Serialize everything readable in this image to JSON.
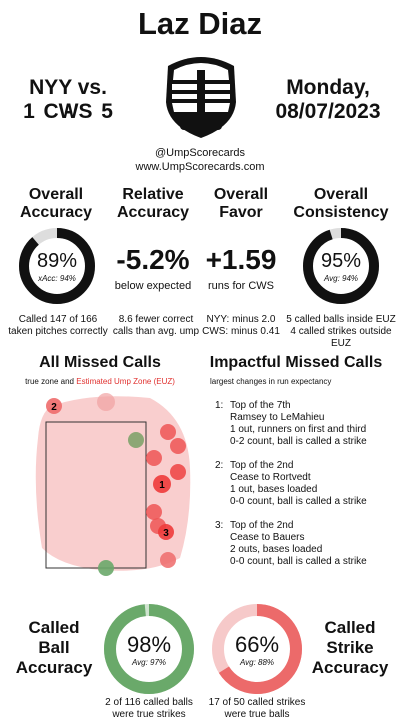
{
  "title": "Laz Diaz",
  "teams": {
    "away": "NYY",
    "vs": "vs.",
    "home": "CWS",
    "away_score": "1",
    "dash": "-",
    "home_score": "5"
  },
  "date": {
    "day": "Monday,",
    "date": "08/07/2023"
  },
  "site": {
    "handle": "@UmpScorecards",
    "url": "www.UmpScorecards.com"
  },
  "stats": {
    "accuracy": {
      "head1": "Overall",
      "head2": "Accuracy",
      "value": "89%",
      "sub": "xAcc: 94%",
      "fraction": 0.886,
      "note1": "Called 147 of 166",
      "note2": "taken pitches correctly"
    },
    "relative": {
      "head1": "Relative",
      "head2": "Accuracy",
      "value": "-5.2%",
      "below": "below expected",
      "note1": "8.6 fewer correct",
      "note2": "calls than avg. ump"
    },
    "favor": {
      "head1": "Overall",
      "head2": "Favor",
      "value": "+1.59",
      "below": "runs for CWS",
      "note1": "NYY: minus 2.0",
      "note2": "CWS: minus 0.41"
    },
    "consistency": {
      "head1": "Overall",
      "head2": "Consistency",
      "value": "95%",
      "sub": "Avg: 94%",
      "fraction": 0.95,
      "note1": "5 called balls inside EUZ",
      "note2": "4 called strikes outside EUZ"
    }
  },
  "missed": {
    "title": "All Missed Calls",
    "legend_true": "true zone and",
    "legend_euz": "Estimated Ump Zone (EUZ)",
    "euz_color": "#e0312f"
  },
  "impact": {
    "title": "Impactful Missed Calls",
    "subtitle": "largest changes in run expectancy",
    "items": [
      {
        "num": "1:",
        "l1": "Top of the 7th",
        "l2": "Ramsey to LeMahieu",
        "l3": "1 out, runners on first and third",
        "l4": "0-2 count, ball is called a strike"
      },
      {
        "num": "2:",
        "l1": "Top of the 2nd",
        "l2": "Cease to Rortvedt",
        "l3": "1 out, bases loaded",
        "l4": "0-0 count, ball is called a strike"
      },
      {
        "num": "3:",
        "l1": "Top of the 2nd",
        "l2": "Cease to Bauers",
        "l3": "2 outs, bases loaded",
        "l4": "0-0 count, ball is called a strike"
      }
    ]
  },
  "ball": {
    "head1": "Called",
    "head2": "Ball",
    "head3": "Accuracy",
    "value": "98%",
    "sub": "Avg: 97%",
    "fraction": 0.983,
    "note1": "2 of 116 called balls",
    "note2": "were true strikes",
    "color": "#6aa96a",
    "track": "#cfe3cf"
  },
  "strike": {
    "head1": "Called",
    "head2": "Strike",
    "head3": "Accuracy",
    "value": "66%",
    "sub": "Avg: 88%",
    "fraction": 0.66,
    "note1": "17 of 50 called strikes",
    "note2": "were true balls",
    "color": "#ec6a6a",
    "track": "#f6c9c9"
  },
  "labels": {
    "pitch1": "1",
    "pitch2": "2",
    "pitch3": "3"
  }
}
